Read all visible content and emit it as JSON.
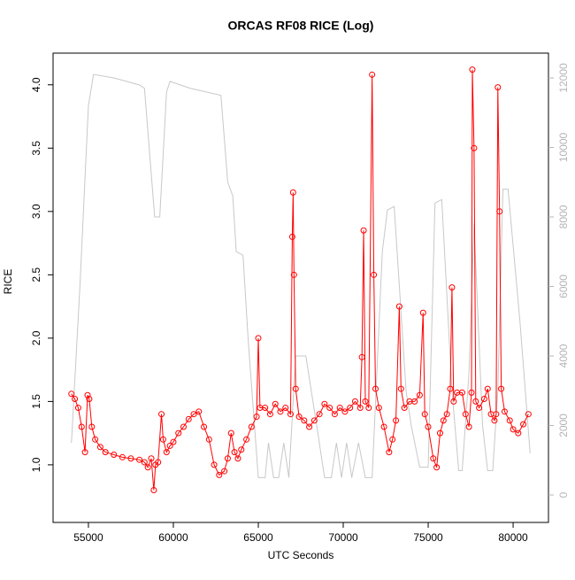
{
  "chart_data": {
    "type": "line",
    "title": "ORCAS RF08 RICE (Log)",
    "x_label": "UTC Seconds",
    "y_label": "RICE",
    "xlim": [
      52920,
      82080
    ],
    "ylim": [
      0.545,
      4.25
    ],
    "y2lim": [
      -790,
      12713
    ],
    "xticks": [
      55000,
      60000,
      65000,
      70000,
      75000,
      80000
    ],
    "yticks": [
      {
        "value": 1,
        "label": "1.0"
      },
      {
        "value": 1.5,
        "label": "1.5"
      },
      {
        "value": 2,
        "label": "2.0"
      },
      {
        "value": 2.5,
        "label": "2.5"
      },
      {
        "value": 3,
        "label": "3.0"
      },
      {
        "value": 3.5,
        "label": "3.5"
      },
      {
        "value": 4,
        "label": "4.0"
      }
    ],
    "y2ticks": [
      0,
      2000,
      4000,
      6000,
      8000,
      10000,
      12000
    ],
    "series": [
      {
        "color": "#c8c8c8",
        "axis": "y2",
        "markers": false,
        "x": [
          54000,
          54500,
          55000,
          55300,
          56500,
          58000,
          58300,
          58900,
          59200,
          59600,
          59800,
          61000,
          62800,
          63200,
          63500,
          63700,
          64100,
          64400,
          65000,
          65400,
          65600,
          65900,
          66200,
          66500,
          66800,
          67200,
          67800,
          68500,
          68900,
          69300,
          69600,
          69900,
          70200,
          70500,
          70900,
          71300,
          71700,
          72300,
          72600,
          73000,
          73700,
          74000,
          74500,
          75000,
          75400,
          75800,
          76400,
          76800,
          77000,
          77400,
          77700,
          78200,
          78500,
          78800,
          79100,
          79400,
          79700,
          80400,
          81000
        ],
        "values": [
          1500,
          6000,
          11200,
          12100,
          12000,
          11800,
          11700,
          8000,
          8000,
          11600,
          11900,
          11700,
          11500,
          9000,
          8600,
          7000,
          6900,
          4500,
          500,
          500,
          1500,
          500,
          500,
          1500,
          500,
          4000,
          4000,
          1800,
          500,
          500,
          1500,
          500,
          1500,
          500,
          1500,
          500,
          500,
          7000,
          8200,
          8300,
          3000,
          2000,
          800,
          800,
          8400,
          8500,
          3000,
          700,
          700,
          3500,
          7800,
          2000,
          700,
          700,
          3000,
          8800,
          8800,
          5000,
          1200
        ]
      },
      {
        "color": "#ff0000",
        "markers": true,
        "x": [
          54000,
          54200,
          54400,
          54600,
          54800,
          54950,
          55050,
          55200,
          55400,
          55700,
          56000,
          56500,
          57000,
          57500,
          58000,
          58300,
          58500,
          58700,
          58850,
          58950,
          59100,
          59300,
          59400,
          59600,
          59800,
          60000,
          60300,
          60600,
          60900,
          61200,
          61500,
          61800,
          62100,
          62400,
          62700,
          63000,
          63200,
          63400,
          63600,
          63800,
          64000,
          64300,
          64600,
          64900,
          65000,
          65100,
          65400,
          65700,
          66000,
          66300,
          66600,
          66900,
          67000,
          67050,
          67100,
          67200,
          67400,
          67700,
          68000,
          68300,
          68600,
          68900,
          69200,
          69500,
          69800,
          70100,
          70400,
          70700,
          71000,
          71100,
          71200,
          71300,
          71500,
          71700,
          71800,
          71900,
          72100,
          72400,
          72700,
          72900,
          73100,
          73300,
          73400,
          73600,
          73900,
          74200,
          74500,
          74700,
          74800,
          75000,
          75300,
          75500,
          75700,
          75900,
          76100,
          76300,
          76400,
          76500,
          76700,
          77000,
          77200,
          77400,
          77550,
          77600,
          77700,
          77800,
          78000,
          78300,
          78500,
          78700,
          78900,
          79000,
          79100,
          79200,
          79300,
          79500,
          79800,
          80000,
          80300,
          80600,
          80900
        ],
        "values": [
          1.56,
          1.52,
          1.45,
          1.3,
          1.1,
          1.55,
          1.52,
          1.3,
          1.2,
          1.14,
          1.1,
          1.08,
          1.06,
          1.05,
          1.04,
          1.02,
          0.98,
          1.05,
          0.8,
          1.0,
          1.02,
          1.4,
          1.2,
          1.1,
          1.15,
          1.18,
          1.25,
          1.3,
          1.36,
          1.4,
          1.42,
          1.3,
          1.2,
          1.0,
          0.92,
          0.95,
          1.05,
          1.25,
          1.1,
          1.05,
          1.12,
          1.2,
          1.3,
          1.38,
          2.0,
          1.45,
          1.45,
          1.4,
          1.48,
          1.42,
          1.45,
          1.4,
          2.8,
          3.15,
          2.5,
          1.6,
          1.38,
          1.35,
          1.3,
          1.35,
          1.4,
          1.48,
          1.45,
          1.4,
          1.45,
          1.42,
          1.45,
          1.5,
          1.45,
          1.85,
          2.85,
          1.5,
          1.45,
          4.08,
          2.5,
          1.6,
          1.45,
          1.3,
          1.1,
          1.2,
          1.35,
          2.25,
          1.6,
          1.45,
          1.5,
          1.5,
          1.55,
          2.2,
          1.4,
          1.3,
          1.05,
          0.98,
          1.25,
          1.35,
          1.4,
          1.6,
          2.4,
          1.5,
          1.57,
          1.57,
          1.4,
          1.3,
          1.57,
          4.12,
          3.5,
          1.5,
          1.45,
          1.52,
          1.6,
          1.4,
          1.35,
          1.4,
          3.98,
          3.0,
          1.6,
          1.42,
          1.35,
          1.28,
          1.25,
          1.32,
          1.4
        ]
      }
    ]
  }
}
